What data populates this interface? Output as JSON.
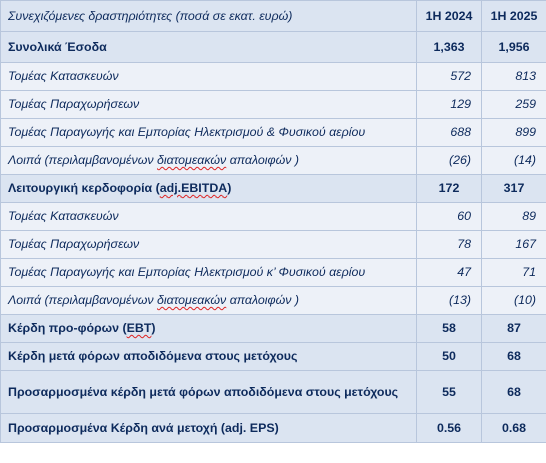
{
  "header": {
    "label": "Συνεχιζόμενες δραστηριότητες (ποσά σε εκατ. ευρώ)",
    "col1": "1Η 2024",
    "col2": "1Η 2025"
  },
  "rows": [
    {
      "kind": "bold",
      "label": "Συνολικά Έσοδα",
      "v1": "1,363",
      "v2": "1,956"
    },
    {
      "kind": "sub",
      "label": "Τομέας Κατασκευών",
      "v1": "572",
      "v2": "813"
    },
    {
      "kind": "sub",
      "label": "Τομέας Παραχωρήσεων",
      "v1": "129",
      "v2": "259"
    },
    {
      "kind": "sub",
      "label": "Τομέας Παραγωγής και Εμπορίας Ηλεκτρισμού & Φυσικού αερίου",
      "v1": "688",
      "v2": "899"
    },
    {
      "kind": "sub",
      "label_pre": "Λοιπά (περιλαμβανομένων ",
      "label_squig": "διατομεακών",
      "label_post": " απαλοιφών )",
      "v1": "(26)",
      "v2": "(14)"
    },
    {
      "kind": "bold",
      "label_pre": "Λειτουργική κερδοφορία (",
      "label_squig": "adj.EBITDA",
      "label_post": ")",
      "v1": "172",
      "v2": "317"
    },
    {
      "kind": "sub",
      "label": "Τομέας Κατασκευών",
      "v1": "60",
      "v2": "89"
    },
    {
      "kind": "sub",
      "label": "Τομέας Παραχωρήσεων",
      "v1": "78",
      "v2": "167"
    },
    {
      "kind": "sub",
      "label": "Τομέας Παραγωγής και Εμπορίας Ηλεκτρισμού κ’ Φυσικού αερίου",
      "v1": "47",
      "v2": "71"
    },
    {
      "kind": "sub",
      "label_pre": "Λοιπά (περιλαμβανομένων ",
      "label_squig": "διατομεακών",
      "label_post": " απαλοιφών )",
      "v1": "(13)",
      "v2": "(10)"
    },
    {
      "kind": "bold",
      "label_pre": "Κέρδη προ-φόρων (",
      "label_squig": "EBT",
      "label_post": ")",
      "v1": "58",
      "v2": "87"
    },
    {
      "kind": "bold",
      "label": "Κέρδη μετά φόρων αποδιδόμενα στους μετόχους",
      "v1": "50",
      "v2": "68"
    },
    {
      "kind": "bold",
      "label": "Προσαρμοσμένα κέρδη μετά φόρων αποδιδόμενα στους μετόχους",
      "v1": "55",
      "v2": "68"
    },
    {
      "kind": "bold",
      "label": "Προσαρμοσμένα Κέρδη ανά μετοχή (adj. EPS)",
      "v1": "0.56",
      "v2": "0.68"
    }
  ]
}
